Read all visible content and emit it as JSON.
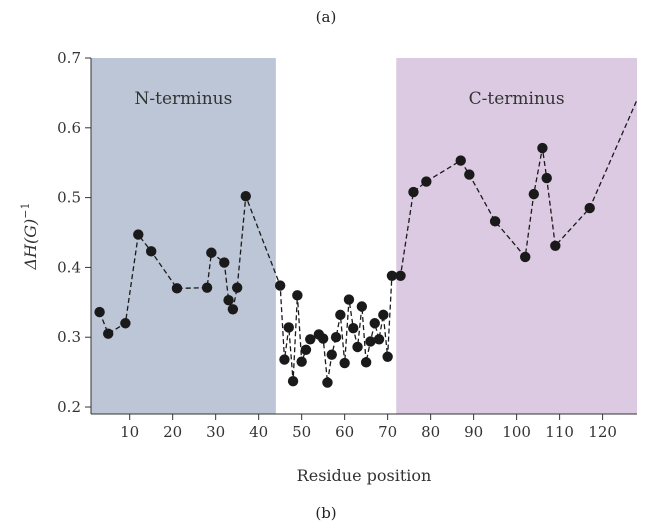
{
  "panel_labels": {
    "top": "(a)",
    "bottom": "(b)"
  },
  "chart_data": {
    "type": "line",
    "xlabel": "Residue position",
    "ylabel_main": "ΔH(G)",
    "ylabel_sup": "−1",
    "xlim": [
      1,
      128
    ],
    "ylim": [
      0.19,
      0.7
    ],
    "xticks": [
      10,
      20,
      30,
      40,
      50,
      60,
      70,
      80,
      90,
      100,
      110,
      120
    ],
    "yticks": [
      0.2,
      0.3,
      0.4,
      0.5,
      0.6,
      0.7
    ],
    "regions": [
      {
        "label": "N-terminus",
        "x_start": 1,
        "x_end": 44,
        "color": "#bcc6d6"
      },
      {
        "label": "C-terminus",
        "x_start": 72,
        "x_end": 128,
        "color": "#dccae2"
      }
    ],
    "line_style": "dashed",
    "marker_color": "#1a1a1a",
    "series": [
      {
        "points": [
          [
            3,
            0.336
          ],
          [
            5,
            0.305
          ],
          [
            9,
            0.32
          ],
          [
            12,
            0.447
          ],
          [
            15,
            0.423
          ],
          [
            21,
            0.37
          ],
          [
            28,
            0.371
          ],
          [
            29,
            0.421
          ],
          [
            32,
            0.407
          ],
          [
            33,
            0.353
          ],
          [
            34,
            0.34
          ],
          [
            35,
            0.371
          ],
          [
            37,
            0.502
          ],
          [
            45,
            0.374
          ],
          [
            46,
            0.268
          ],
          [
            47,
            0.314
          ],
          [
            48,
            0.237
          ],
          [
            49,
            0.36
          ],
          [
            50,
            0.265
          ],
          [
            51,
            0.282
          ],
          [
            52,
            0.297
          ],
          [
            54,
            0.304
          ],
          [
            55,
            0.298
          ],
          [
            56,
            0.235
          ],
          [
            57,
            0.275
          ],
          [
            58,
            0.3
          ],
          [
            59,
            0.332
          ],
          [
            60,
            0.263
          ],
          [
            61,
            0.354
          ],
          [
            62,
            0.313
          ],
          [
            63,
            0.286
          ],
          [
            64,
            0.344
          ],
          [
            65,
            0.264
          ],
          [
            66,
            0.294
          ],
          [
            67,
            0.32
          ],
          [
            68,
            0.297
          ],
          [
            69,
            0.332
          ],
          [
            70,
            0.272
          ],
          [
            71,
            0.388
          ],
          [
            73,
            0.388
          ],
          [
            76,
            0.508
          ],
          [
            79,
            0.523
          ],
          [
            87,
            0.553
          ],
          [
            89,
            0.533
          ],
          [
            95,
            0.466
          ],
          [
            102,
            0.415
          ],
          [
            104,
            0.505
          ],
          [
            106,
            0.571
          ],
          [
            107,
            0.528
          ],
          [
            109,
            0.431
          ],
          [
            117,
            0.485
          ]
        ],
        "line_end": [
          128,
          0.64
        ]
      }
    ]
  }
}
